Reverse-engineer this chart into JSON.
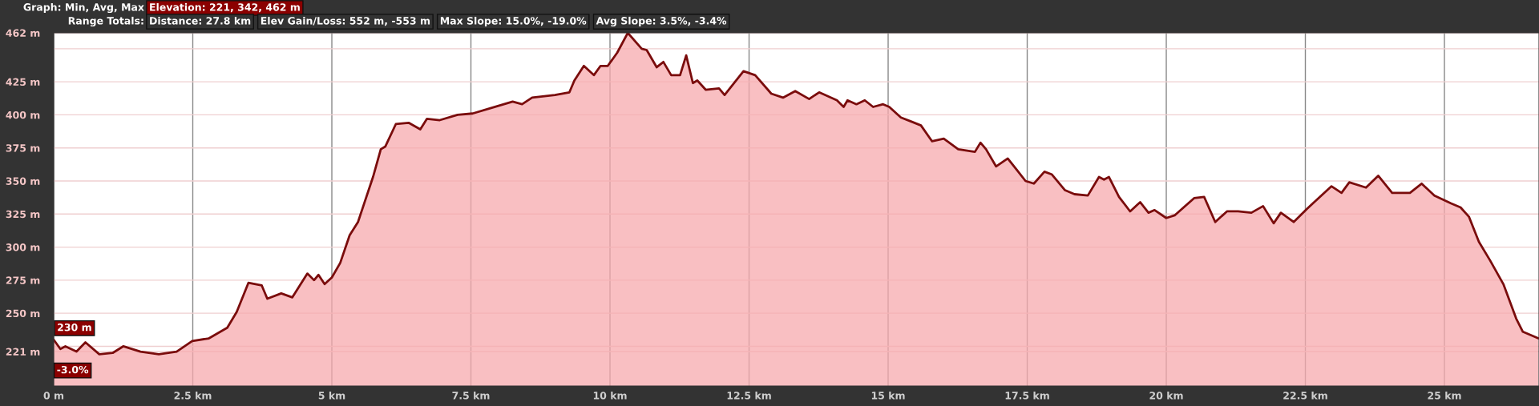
{
  "chart_data": {
    "type": "area",
    "annotations": [
      "Graph: Min, Avg, Max",
      "Elevation: 221, 342, 462 m",
      "Range Totals:",
      "Distance: 27.8 km",
      "Elev Gain/Loss: 552 m, -553 m",
      "Max Slope: 15.0%, -19.0%",
      "Avg Slope: 3.5%, -3.4%",
      {
        "text": "230 m",
        "x": 0,
        "y": 230
      },
      "-3.0%"
    ],
    "x": [
      0,
      0.12,
      0.21,
      0.41,
      0.57,
      0.82,
      1.06,
      1.25,
      1.56,
      1.89,
      2.21,
      2.49,
      2.79,
      3.12,
      3.29,
      3.5,
      3.74,
      3.84,
      4.09,
      4.29,
      4.56,
      4.68,
      4.76,
      4.87,
      5.0,
      5.15,
      5.32,
      5.47,
      5.74,
      5.88,
      5.96,
      6.15,
      6.38,
      6.59,
      6.71,
      6.94,
      7.26,
      7.53,
      7.85,
      8.25,
      8.42,
      8.6,
      9.01,
      9.27,
      9.36,
      9.53,
      9.71,
      9.83,
      9.96,
      10.13,
      10.32,
      10.57,
      10.66,
      10.84,
      10.96,
      11.1,
      11.26,
      11.37,
      11.49,
      11.57,
      11.72,
      11.96,
      12.06,
      12.4,
      12.61,
      12.9,
      13.11,
      13.33,
      13.58,
      13.76,
      14.08,
      14.2,
      14.27,
      14.43,
      14.58,
      14.73,
      14.91,
      15.02,
      15.23,
      15.41,
      15.59,
      15.79,
      16.0,
      16.26,
      16.56,
      16.66,
      16.76,
      16.94,
      17.15,
      17.47,
      17.62,
      17.81,
      17.94,
      18.18,
      18.35,
      18.59,
      18.79,
      18.88,
      18.97,
      19.15,
      19.35,
      19.53,
      19.68,
      19.79,
      20.0,
      20.15,
      20.5,
      20.68,
      20.88,
      21.09,
      21.29,
      21.53,
      21.74,
      21.93,
      22.06,
      22.29,
      22.53,
      22.97,
      23.15,
      23.29,
      23.59,
      23.81,
      24.06,
      24.38,
      24.59,
      24.82,
      25.12,
      25.29,
      25.44,
      25.62,
      25.82,
      26.06,
      26.29,
      26.41,
      26.69
    ],
    "series": [
      {
        "color": "#7a0c0c",
        "values": [
          230,
          223,
          225,
          221,
          228,
          219,
          220,
          225,
          221,
          219,
          221,
          229,
          231,
          239,
          251,
          273,
          271,
          261,
          265,
          262,
          280,
          275,
          279,
          272,
          277,
          288,
          309,
          319,
          353,
          374,
          376,
          393,
          394,
          389,
          397,
          396,
          400,
          401,
          405,
          410,
          408,
          413,
          415,
          417,
          426,
          437,
          430,
          437,
          437,
          447,
          462,
          450,
          449,
          436,
          440,
          430,
          430,
          445,
          424,
          426,
          419,
          420,
          415,
          433,
          430,
          416,
          413,
          418,
          412,
          417,
          411,
          406,
          411,
          408,
          411,
          406,
          408,
          406,
          398,
          395,
          392,
          380,
          382,
          374,
          372,
          379,
          374,
          361,
          367,
          350,
          348,
          357,
          355,
          343,
          340,
          339,
          353,
          351,
          353,
          338,
          327,
          334,
          326,
          328,
          322,
          324,
          337,
          338,
          319,
          327,
          327,
          326,
          331,
          318,
          326,
          319,
          329,
          346,
          341,
          349,
          345,
          354,
          341,
          341,
          348,
          339,
          333,
          330,
          323,
          304,
          290,
          272,
          246,
          236,
          231
        ]
      }
    ],
    "xlim": [
      0,
      26.7
    ],
    "xticks": [
      {
        "value": 0,
        "label": "0 m"
      },
      {
        "value": 2.5,
        "label": "2.5 km"
      },
      {
        "value": 5,
        "label": "5 km"
      },
      {
        "value": 7.5,
        "label": "7.5 km"
      },
      {
        "value": 10,
        "label": "10 km"
      },
      {
        "value": 12.5,
        "label": "12.5 km"
      },
      {
        "value": 15,
        "label": "15 km"
      },
      {
        "value": 17.5,
        "label": "17.5 km"
      },
      {
        "value": 20,
        "label": "20 km"
      },
      {
        "value": 22.5,
        "label": "22.5 km"
      },
      {
        "value": 25,
        "label": "25 km"
      }
    ],
    "ylim": [
      195,
      462
    ],
    "yticks": [
      {
        "value": 221,
        "label": "221 m"
      },
      {
        "value": 225,
        "label": null
      },
      {
        "value": 250,
        "label": "250 m"
      },
      {
        "value": 275,
        "label": "275 m"
      },
      {
        "value": 300,
        "label": "300 m"
      },
      {
        "value": 325,
        "label": "325 m"
      },
      {
        "value": 350,
        "label": "350 m"
      },
      {
        "value": 375,
        "label": "375 m"
      },
      {
        "value": 400,
        "label": "400 m"
      },
      {
        "value": 425,
        "label": "425 m"
      },
      {
        "value": 450,
        "label": null
      },
      {
        "value": 462,
        "label": "462 m"
      }
    ],
    "grid": true
  }
}
